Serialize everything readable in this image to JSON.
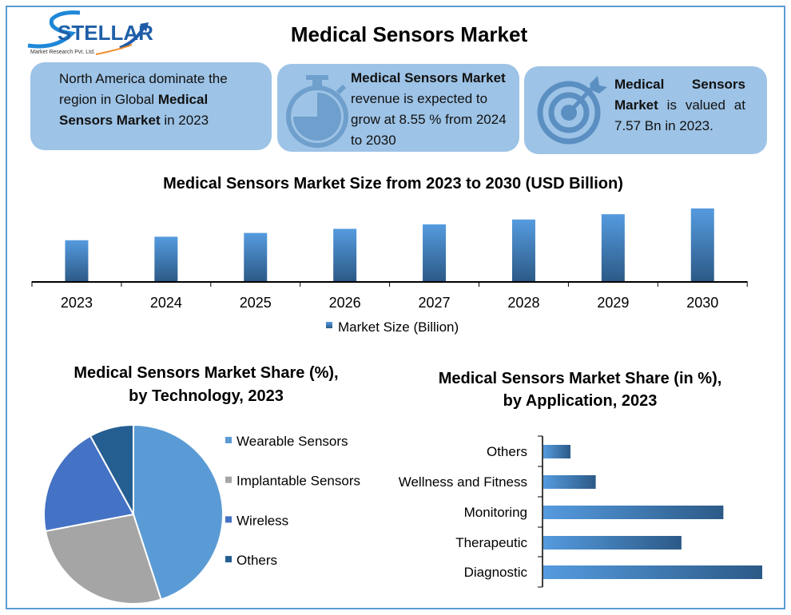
{
  "logo": {
    "name": "STELLAR",
    "tagline": "Market Research Pvt. Ltd."
  },
  "title": "Medical Sensors Market",
  "cards": [
    {
      "icon": "globe-region",
      "text_pre": "North America dominate the region in Global ",
      "text_bold": "Medical Sensors Market",
      "text_post": " in 2023"
    },
    {
      "icon": "stopwatch-icon",
      "text_bold": "Medical Sensors Market",
      "text_post": " revenue is expected to grow at 8.55 % from 2024 to 2030"
    },
    {
      "icon": "target-icon",
      "text_bold": "Medical Sensors Market",
      "text_post": " is valued at 7.57 Bn in 2023."
    }
  ],
  "colors": {
    "card": "#9dc3e6",
    "frame": "#5b9bd5",
    "bar_top": "#559bdf",
    "bar_bottom": "#2c5a87",
    "pie": [
      "#5b9bd5",
      "#a5a5a5",
      "#4472c4",
      "#255e91"
    ]
  },
  "chart_data": [
    {
      "type": "bar",
      "title": "Medical Sensors Market Size from 2023 to 2030 (USD Billion)",
      "categories": [
        "2023",
        "2024",
        "2025",
        "2026",
        "2027",
        "2028",
        "2029",
        "2030"
      ],
      "series": [
        {
          "name": "Market Size (Billion)",
          "values": [
            7.57,
            8.22,
            8.92,
            9.68,
            10.51,
            11.41,
            12.39,
            13.45
          ]
        }
      ],
      "ylim": [
        0,
        14
      ],
      "grid": false,
      "legend": "bottom"
    },
    {
      "type": "pie",
      "title_lines": [
        "Medical Sensors Market Share (%),",
        "by Technology, 2023"
      ],
      "categories": [
        "Wearable Sensors",
        "Implantable Sensors",
        "Wireless",
        "Others"
      ],
      "values": [
        45,
        27,
        20,
        8
      ],
      "legend": "right"
    },
    {
      "type": "bar",
      "orientation": "horizontal",
      "title_lines": [
        "Medical Sensors Market Share (in %),",
        "by Application, 2023"
      ],
      "categories": [
        "Others",
        "Wellness and Fitness",
        "Monitoring",
        "Therapeutic",
        "Diagnostic"
      ],
      "values": [
        4.4,
        8.5,
        29.2,
        22.4,
        35.5
      ],
      "grid": false
    }
  ]
}
